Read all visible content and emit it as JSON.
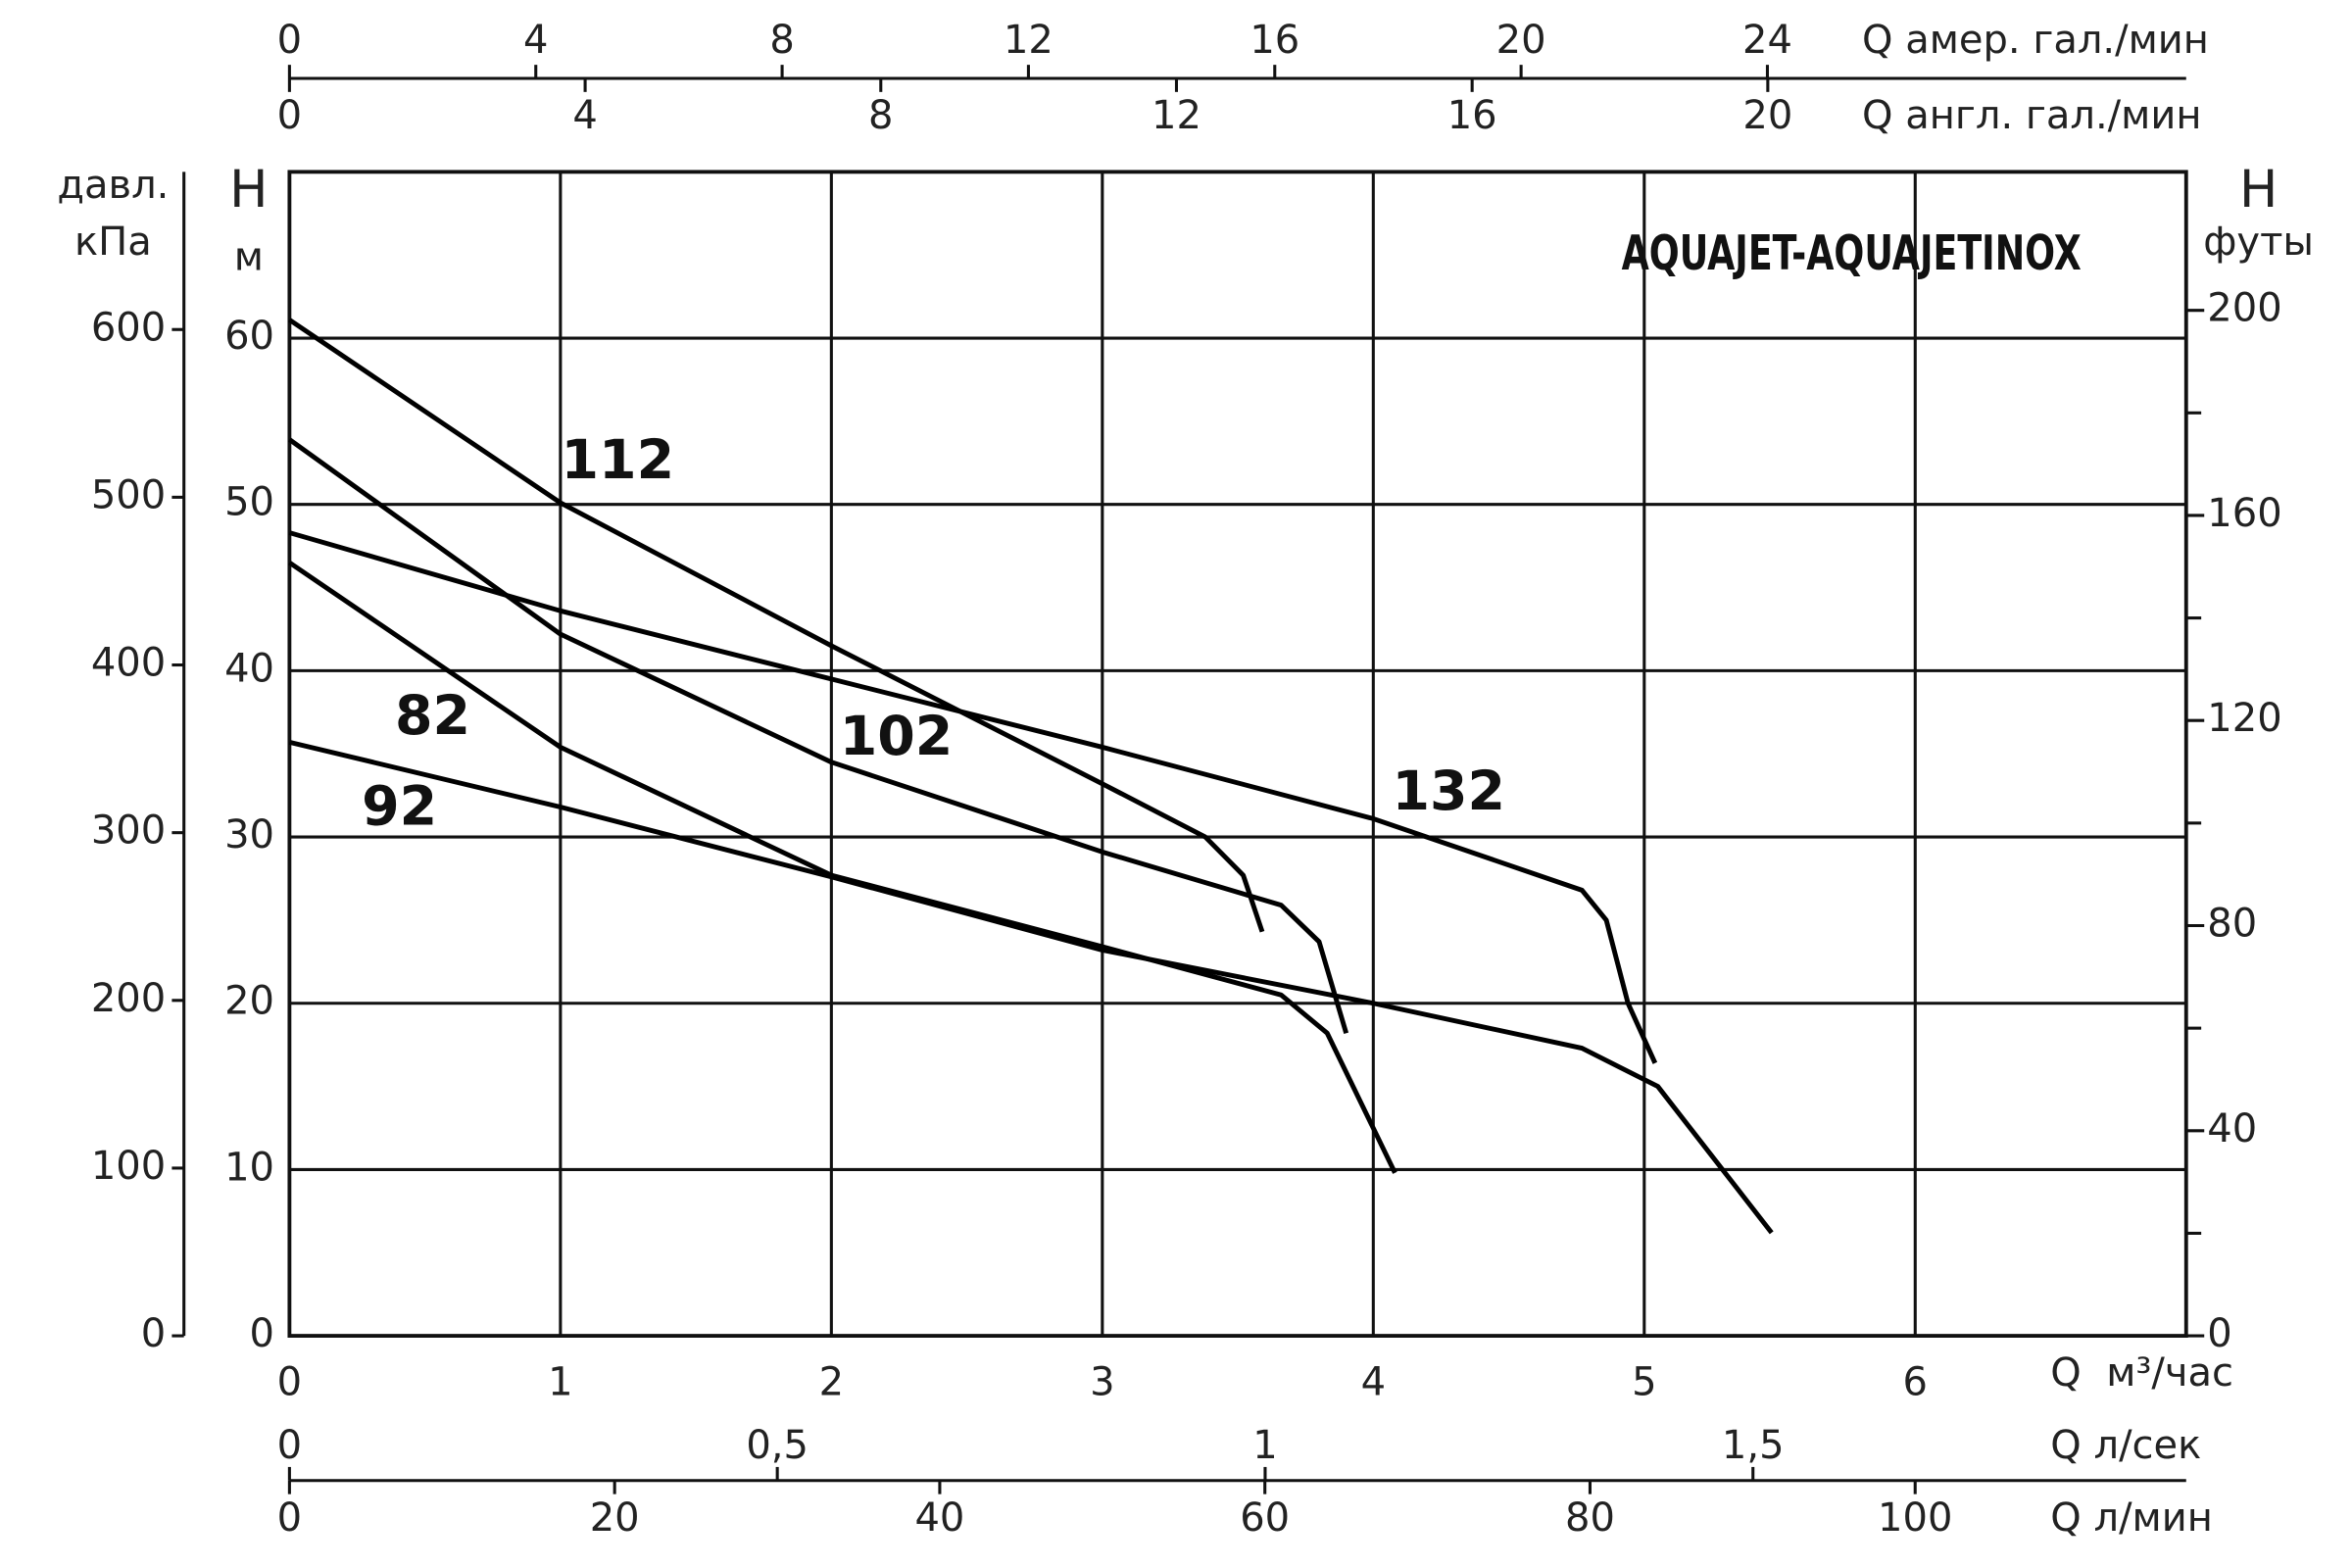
{
  "chart_data": {
    "type": "line",
    "title": "AQUAJET-AQUAJETINOX",
    "xlim": [
      0,
      7
    ],
    "xticks": [
      0,
      1,
      2,
      3,
      4,
      5,
      6
    ],
    "x_label": "Q  м³/час",
    "ylim": [
      0,
      70
    ],
    "yticks": [
      0,
      10,
      20,
      30,
      40,
      50,
      60
    ],
    "y_label": [
      "H",
      "м"
    ],
    "grid": true,
    "series": [
      {
        "name": "112",
        "color": "#000000",
        "x": [
          0,
          1,
          2,
          3,
          3.38,
          3.52,
          3.59
        ],
        "values": [
          61.1,
          50.1,
          41.5,
          33.2,
          30.0,
          27.7,
          24.3
        ]
      },
      {
        "name": "102",
        "color": "#000000",
        "x": [
          0,
          1,
          2,
          3,
          3.66,
          3.8,
          3.9
        ],
        "values": [
          53.9,
          42.2,
          34.5,
          29.1,
          25.9,
          23.7,
          18.2
        ]
      },
      {
        "name": "132",
        "color": "#000000",
        "x": [
          0,
          1,
          2,
          3,
          4,
          4.77,
          4.86,
          4.94,
          5.04
        ],
        "values": [
          48.3,
          43.6,
          39.5,
          35.4,
          31.1,
          26.8,
          25.0,
          20.0,
          16.4
        ]
      },
      {
        "name": "82",
        "color": "#000000",
        "x": [
          0,
          1,
          2,
          3,
          3.66,
          3.83,
          4.08
        ],
        "values": [
          46.5,
          35.4,
          27.7,
          23.4,
          20.5,
          18.2,
          9.8
        ]
      },
      {
        "name": "92",
        "color": "#000000",
        "x": [
          0,
          1,
          2,
          3,
          4,
          4.77,
          5.05,
          5.47
        ],
        "values": [
          35.7,
          31.8,
          27.6,
          23.2,
          20.0,
          17.3,
          15.0,
          6.2
        ]
      }
    ],
    "kpa_axis": {
      "label": [
        "давл.",
        "кПа"
      ],
      "lim": [
        0,
        694
      ],
      "ticks": [
        0,
        100,
        200,
        300,
        400,
        500,
        600
      ]
    },
    "ft_axis": {
      "label": [
        "H",
        "футы"
      ],
      "lim": [
        0,
        227
      ],
      "ticks": [
        0,
        40,
        80,
        120,
        160,
        200
      ],
      "minor_ticks": [
        20,
        60,
        100,
        140,
        180
      ]
    },
    "top_axes": [
      {
        "label": "Q  амер. гал./мин",
        "lim": [
          0,
          30.8
        ],
        "ticks": [
          0,
          4,
          8,
          12,
          16,
          20,
          24
        ]
      },
      {
        "label": "Q  англ. гал./мин",
        "lim": [
          0,
          25.66
        ],
        "ticks": [
          0,
          4,
          8,
          12,
          16,
          20
        ]
      }
    ],
    "bottom_axes": [
      {
        "label": "Q  л/сек",
        "lim": [
          0,
          1.944
        ],
        "ticks": [
          0,
          {
            "value": 0.5,
            "label": "0,5"
          },
          1,
          {
            "value": 1.5,
            "label": "1,5"
          }
        ]
      },
      {
        "label": "Q  л/мин",
        "lim": [
          0,
          116.67
        ],
        "ticks": [
          0,
          20,
          40,
          60,
          80,
          100
        ]
      }
    ]
  }
}
